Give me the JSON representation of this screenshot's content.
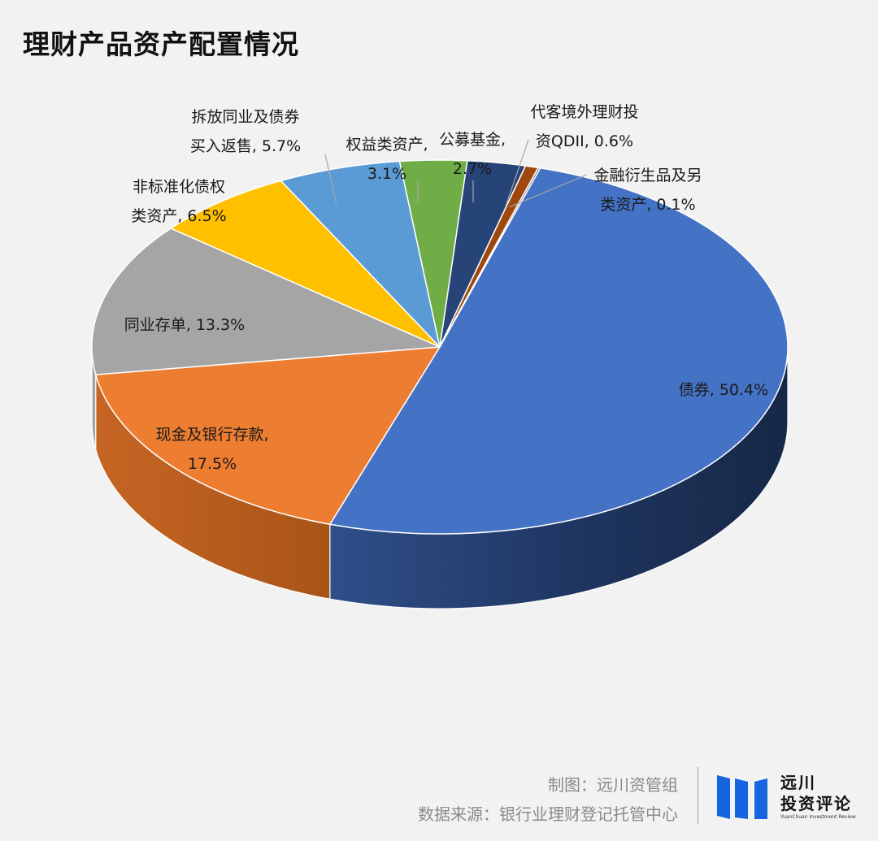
{
  "title": "理财产品资产配置情况",
  "chart_data": {
    "type": "pie",
    "three_d": true,
    "title": "理财产品资产配置情况",
    "slices": [
      {
        "name": "债券",
        "label_lines": [
          "债券, 50.4%"
        ],
        "value": 50.4,
        "color": "#4472c4"
      },
      {
        "name": "现金及银行存款",
        "label_lines": [
          "现金及银行存款,",
          "17.5%"
        ],
        "value": 17.5,
        "color": "#ed7d31"
      },
      {
        "name": "同业存单",
        "label_lines": [
          "同业存单, 13.3%"
        ],
        "value": 13.3,
        "color": "#a5a5a5"
      },
      {
        "name": "非标准化债权类资产",
        "label_lines": [
          "非标准化债权",
          "类资产, 6.5%"
        ],
        "value": 6.5,
        "color": "#ffc000"
      },
      {
        "name": "拆放同业及债券买入返售",
        "label_lines": [
          "拆放同业及债券",
          "买入返售, 5.7%"
        ],
        "value": 5.7,
        "color": "#5b9bd5"
      },
      {
        "name": "权益类资产",
        "label_lines": [
          "权益类资产,",
          "3.1%"
        ],
        "value": 3.1,
        "color": "#70ad47"
      },
      {
        "name": "公募基金",
        "label_lines": [
          "公募基金,",
          "2.7%"
        ],
        "value": 2.7,
        "color": "#264478"
      },
      {
        "name": "代客境外理财投资QDII",
        "label_lines": [
          "代客境外理财投",
          "资QDII, 0.6%"
        ],
        "value": 0.6,
        "color": "#9e480e"
      },
      {
        "name": "金融衍生品及另类资产",
        "label_lines": [
          "金融衍生品及另",
          "类资产, 0.1%"
        ],
        "value": 0.1,
        "color": "#636363"
      }
    ]
  },
  "footer": {
    "credit": "制图：远川资管组",
    "source": "数据来源：银行业理财登记托管中心"
  },
  "logo": {
    "line1": "远川",
    "line2": "投资评论",
    "sub": "YuanChuan Investment Review",
    "bar_color": "#1565e0"
  }
}
